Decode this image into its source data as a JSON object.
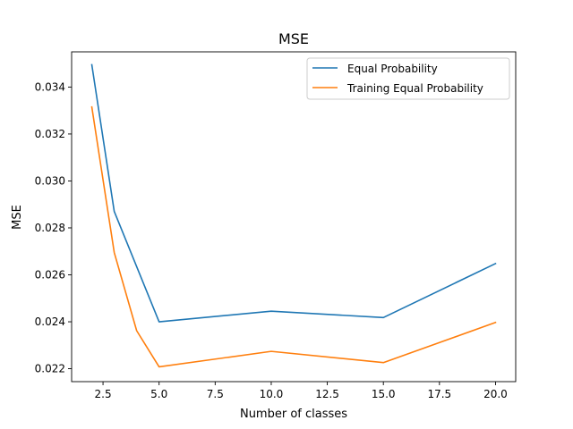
{
  "chart_data": {
    "type": "line",
    "title": "MSE",
    "xlabel": "Number of classes",
    "ylabel": "MSE",
    "xlim": [
      1.1,
      20.9
    ],
    "ylim": [
      0.02145,
      0.0355
    ],
    "xticks": [
      2.5,
      5.0,
      7.5,
      10.0,
      12.5,
      15.0,
      17.5,
      20.0
    ],
    "xtick_labels": [
      "2.5",
      "5.0",
      "7.5",
      "10.0",
      "12.5",
      "15.0",
      "17.5",
      "20.0"
    ],
    "yticks": [
      0.022,
      0.024,
      0.026,
      0.028,
      0.03,
      0.032,
      0.034
    ],
    "ytick_labels": [
      "0.022",
      "0.024",
      "0.026",
      "0.028",
      "0.030",
      "0.032",
      "0.034"
    ],
    "grid": false,
    "legend_position": "upper right",
    "series": [
      {
        "name": "Equal Probability",
        "color": "#1f77b4",
        "x": [
          2,
          3,
          5,
          10,
          15,
          20
        ],
        "y": [
          0.03495,
          0.0287,
          0.024,
          0.02445,
          0.02418,
          0.02648
        ]
      },
      {
        "name": "Training Equal Probability",
        "color": "#ff7f0e",
        "x": [
          2,
          3,
          4,
          5,
          10,
          15,
          20
        ],
        "y": [
          0.03315,
          0.02695,
          0.02362,
          0.02208,
          0.02274,
          0.02226,
          0.02397
        ]
      }
    ]
  }
}
